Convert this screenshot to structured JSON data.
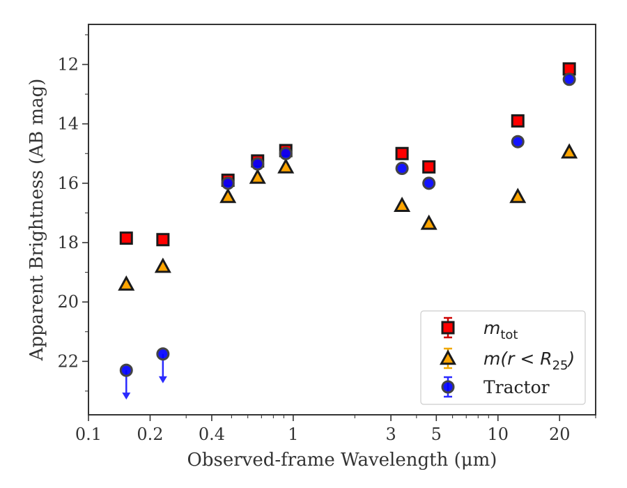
{
  "chart_data": {
    "type": "scatter",
    "title": "",
    "xlabel": "Observed-frame Wavelength (μm)",
    "ylabel": "Apparent Brightness (AB mag)",
    "xscale": "log",
    "xlim": [
      0.1,
      30
    ],
    "ylim": [
      23.8,
      10.65
    ],
    "y_inverted": true,
    "grid": false,
    "legend_position": "lower-right",
    "x_ticks": [
      {
        "value": 0.1,
        "label": "0.1"
      },
      {
        "value": 0.2,
        "label": "0.2"
      },
      {
        "value": 0.4,
        "label": "0.4"
      },
      {
        "value": 1,
        "label": "1"
      },
      {
        "value": 3,
        "label": "3"
      },
      {
        "value": 5,
        "label": "5"
      },
      {
        "value": 10,
        "label": "10"
      },
      {
        "value": 20,
        "label": "20"
      }
    ],
    "y_ticks": [
      {
        "value": 12,
        "label": "12"
      },
      {
        "value": 14,
        "label": "14"
      },
      {
        "value": 16,
        "label": "16"
      },
      {
        "value": 18,
        "label": "18"
      },
      {
        "value": 20,
        "label": "20"
      },
      {
        "value": 22,
        "label": "22"
      }
    ],
    "series": [
      {
        "name_main": "m",
        "name_sub": "tot",
        "marker": "square",
        "color": "#ff0000",
        "edge_color": "#1a1a1a",
        "errorbar_color": "#cc0000",
        "points": [
          {
            "x": 0.153,
            "y": 17.85
          },
          {
            "x": 0.231,
            "y": 17.9
          },
          {
            "x": 0.48,
            "y": 15.9
          },
          {
            "x": 0.67,
            "y": 15.25
          },
          {
            "x": 0.92,
            "y": 14.9
          },
          {
            "x": 3.4,
            "y": 15.0
          },
          {
            "x": 4.6,
            "y": 15.45
          },
          {
            "x": 12.5,
            "y": 13.9
          },
          {
            "x": 22.3,
            "y": 12.15
          }
        ]
      },
      {
        "name_main": "m(r < R",
        "name_sub": "25",
        "name_tail": ")",
        "marker": "triangle",
        "color": "#ffa500",
        "edge_color": "#1a1a1a",
        "errorbar_color": "#f0a800",
        "points": [
          {
            "x": 0.153,
            "y": 19.4
          },
          {
            "x": 0.231,
            "y": 18.8
          },
          {
            "x": 0.48,
            "y": 16.45
          },
          {
            "x": 0.67,
            "y": 15.8
          },
          {
            "x": 0.92,
            "y": 15.45
          },
          {
            "x": 3.4,
            "y": 16.75
          },
          {
            "x": 4.6,
            "y": 17.35
          },
          {
            "x": 12.5,
            "y": 16.45
          },
          {
            "x": 22.3,
            "y": 14.95
          }
        ]
      },
      {
        "name": "Tractor",
        "marker": "circle",
        "color": "#0000ff",
        "edge_color": "#444444",
        "errorbar_color": "#2a2aff",
        "points": [
          {
            "x": 0.153,
            "y": 22.3,
            "upper_limit": true
          },
          {
            "x": 0.231,
            "y": 21.75,
            "upper_limit": true
          },
          {
            "x": 0.48,
            "y": 16.0
          },
          {
            "x": 0.67,
            "y": 15.35
          },
          {
            "x": 0.92,
            "y": 15.0
          },
          {
            "x": 3.4,
            "y": 15.5
          },
          {
            "x": 4.6,
            "y": 16.0
          },
          {
            "x": 12.5,
            "y": 14.6
          },
          {
            "x": 22.3,
            "y": 12.5
          }
        ]
      }
    ]
  }
}
